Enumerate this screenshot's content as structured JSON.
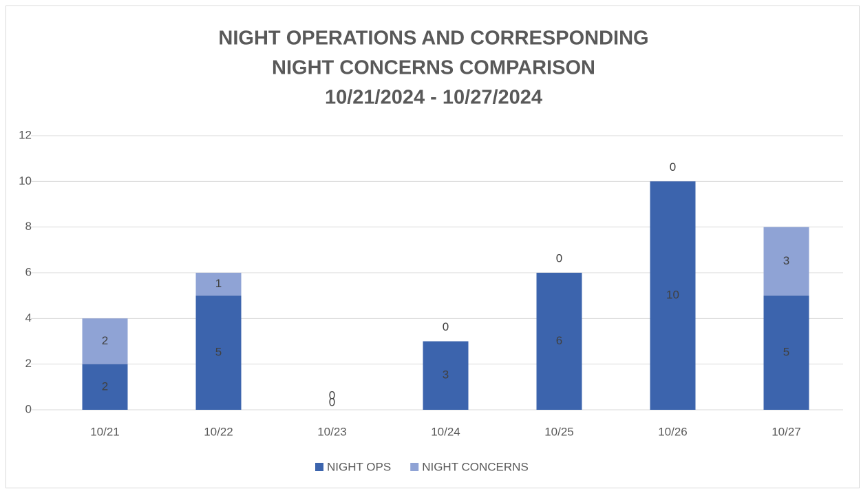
{
  "chart_data": {
    "type": "stacked_bar",
    "title": [
      "NIGHT OPERATIONS AND CORRESPONDING",
      "NIGHT CONCERNS COMPARISON",
      "10/21/2024 - 10/27/2024"
    ],
    "categories": [
      "10/21",
      "10/22",
      "10/23",
      "10/24",
      "10/25",
      "10/26",
      "10/27"
    ],
    "series": [
      {
        "name": "NIGHT OPS",
        "color": "#3c64ad",
        "values": [
          2,
          5,
          0,
          3,
          6,
          10,
          5
        ]
      },
      {
        "name": "NIGHT CONCERNS",
        "color": "#8fa3d5",
        "values": [
          2,
          1,
          0,
          0,
          0,
          0,
          3
        ]
      }
    ],
    "ylim": [
      0,
      12
    ],
    "yticks": [
      0,
      2,
      4,
      6,
      8,
      10,
      12
    ],
    "grid": true,
    "legend": "bottom"
  }
}
